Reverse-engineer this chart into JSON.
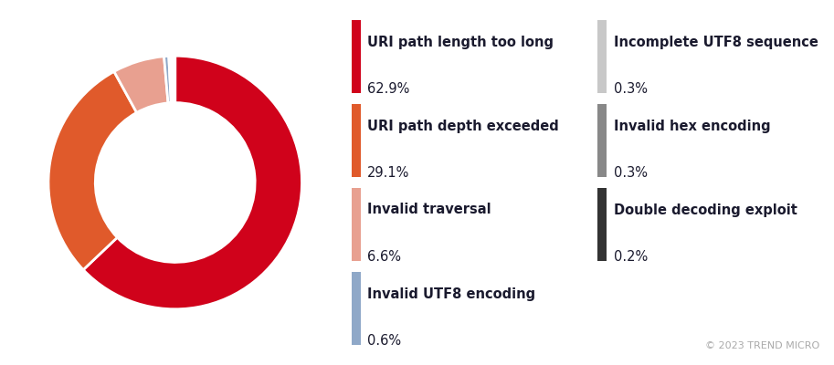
{
  "labels": [
    "URI path length too long",
    "URI path depth exceeded",
    "Invalid traversal",
    "Invalid UTF8 encoding",
    "Incomplete UTF8 sequence",
    "Invalid hex encoding",
    "Double decoding exploit"
  ],
  "values": [
    62.9,
    29.1,
    6.6,
    0.6,
    0.3,
    0.3,
    0.2
  ],
  "percentages": [
    "62.9%",
    "29.1%",
    "6.6%",
    "0.6%",
    "0.3%",
    "0.3%",
    "0.2%"
  ],
  "colors": [
    "#d0021b",
    "#e05a2b",
    "#e8a090",
    "#8fa8c8",
    "#c8c8c8",
    "#888888",
    "#333333"
  ],
  "background_color": "#ffffff",
  "copyright_text": "© 2023 TREND MICRO",
  "copyright_color": "#aaaaaa",
  "legend_label_color": "#1a1a2e",
  "legend_pct_color": "#1a1a2e"
}
